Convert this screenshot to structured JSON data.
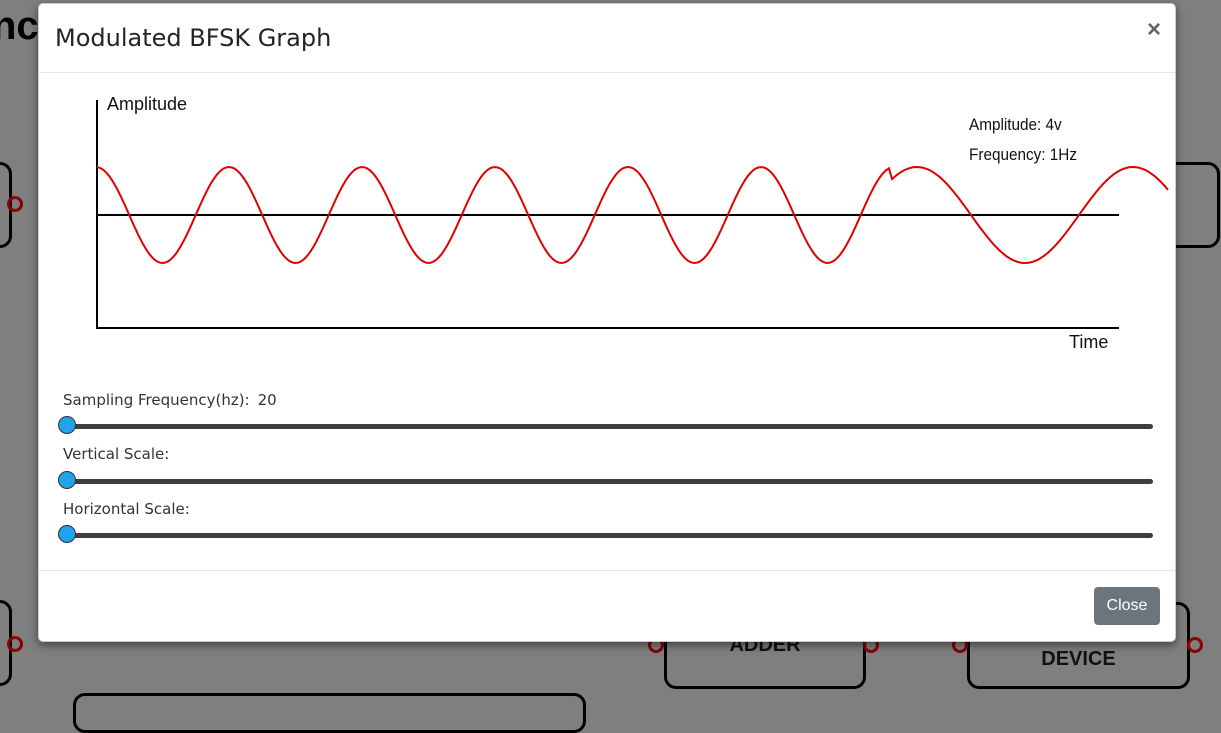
{
  "background": {
    "title_fragment": "ncy",
    "blocks": [
      {
        "label": "ADDER"
      },
      {
        "label": "DEVICE"
      }
    ]
  },
  "modal": {
    "title": "Modulated BFSK Graph",
    "close_x": "×",
    "close_button": "Close"
  },
  "graph": {
    "y_label": "Amplitude",
    "x_label": "Time",
    "amplitude_info": "Amplitude: 4v",
    "frequency_info": "Frequency: 1Hz",
    "line_color": "#e00000"
  },
  "sliders": [
    {
      "label": "Sampling Frequency(hz):",
      "value": "20",
      "position": 0
    },
    {
      "label": "Vertical Scale:",
      "value": "",
      "position": 0
    },
    {
      "label": "Horizontal Scale:",
      "value": "",
      "position": 0
    }
  ],
  "colors": {
    "slider_thumb": "#1fa3ec",
    "close_button": "#6c757d",
    "overlay": "#7f7f7f"
  }
}
